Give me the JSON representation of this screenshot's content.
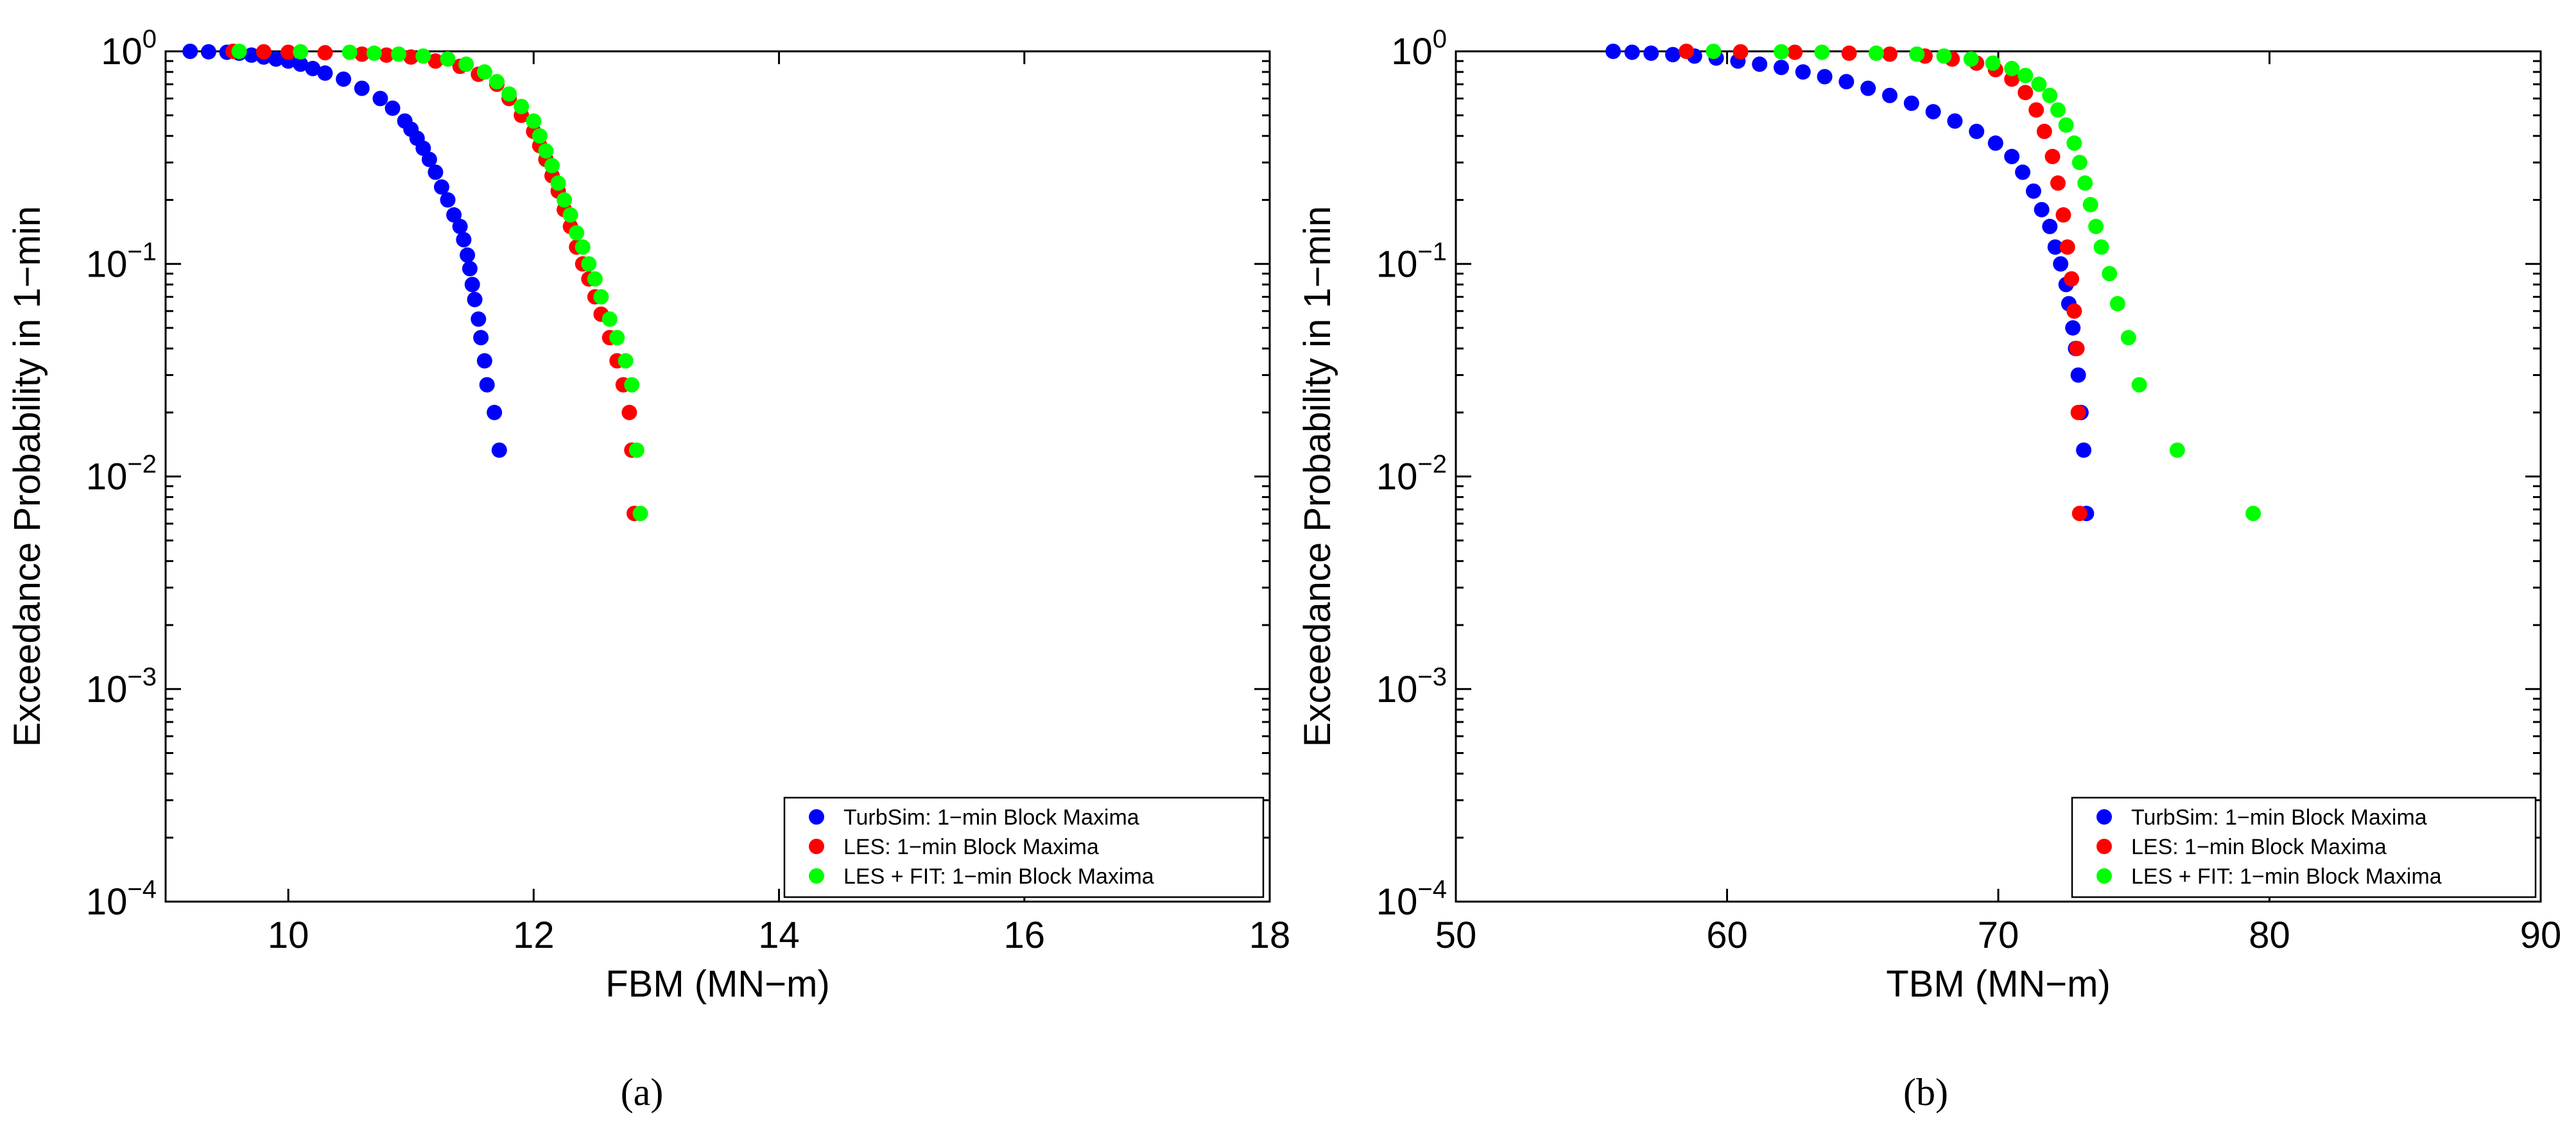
{
  "captions": [
    "(a)",
    "(b)"
  ],
  "chart_data": [
    {
      "type": "scatter",
      "title": "",
      "caption": "(a)",
      "xlabel": "FBM (MN−m)",
      "ylabel": "Exceedance Probability in 1−min",
      "xlim": [
        9,
        18
      ],
      "ylim": [
        0.0001,
        1
      ],
      "yscale": "log",
      "xticks": [
        10,
        12,
        14,
        16,
        18
      ],
      "xtick_labels": [
        "10",
        "12",
        "14",
        "16",
        "18"
      ],
      "yticks": [
        0.0001,
        0.001,
        0.01,
        0.1,
        1
      ],
      "ytick_bases": [
        "10",
        "10",
        "10",
        "10",
        "10"
      ],
      "ytick_exps": [
        "−4",
        "−3",
        "−2",
        "−1",
        "0"
      ],
      "grid": false,
      "legend_position": "bottom-right",
      "series": [
        {
          "name": "TurbSim: 1−min Block Maxima",
          "color": "#0000ff",
          "x": [
            9.2,
            9.35,
            9.5,
            9.6,
            9.7,
            9.8,
            9.9,
            10.0,
            10.1,
            10.2,
            10.3,
            10.45,
            10.6,
            10.75,
            10.85,
            10.95,
            11.0,
            11.05,
            11.1,
            11.15,
            11.2,
            11.25,
            11.3,
            11.35,
            11.4,
            11.43,
            11.46,
            11.48,
            11.5,
            11.52,
            11.55,
            11.57,
            11.6,
            11.62,
            11.68,
            11.72
          ],
          "y": [
            1.0,
            0.995,
            0.99,
            0.98,
            0.96,
            0.94,
            0.92,
            0.9,
            0.87,
            0.83,
            0.79,
            0.74,
            0.67,
            0.6,
            0.54,
            0.47,
            0.43,
            0.39,
            0.35,
            0.31,
            0.27,
            0.23,
            0.2,
            0.17,
            0.15,
            0.13,
            0.11,
            0.095,
            0.08,
            0.068,
            0.055,
            0.045,
            0.035,
            0.027,
            0.02,
            0.0133
          ]
        },
        {
          "name": "LES: 1−min Block Maxima",
          "color": "#ff0000",
          "x": [
            9.55,
            9.8,
            10.0,
            10.3,
            10.6,
            10.8,
            11.0,
            11.2,
            11.4,
            11.55,
            11.7,
            11.8,
            11.9,
            12.0,
            12.05,
            12.1,
            12.15,
            12.2,
            12.25,
            12.3,
            12.35,
            12.4,
            12.45,
            12.5,
            12.55,
            12.62,
            12.68,
            12.73,
            12.78,
            12.8,
            12.82
          ],
          "y": [
            1.0,
            0.995,
            0.99,
            0.985,
            0.97,
            0.96,
            0.94,
            0.9,
            0.85,
            0.78,
            0.7,
            0.6,
            0.5,
            0.42,
            0.36,
            0.31,
            0.26,
            0.22,
            0.18,
            0.15,
            0.12,
            0.1,
            0.085,
            0.07,
            0.058,
            0.045,
            0.035,
            0.027,
            0.02,
            0.0133,
            0.0067
          ]
        },
        {
          "name": "LES + FIT: 1−min Block Maxima",
          "color": "#00ff00",
          "x": [
            9.6,
            10.1,
            10.5,
            10.7,
            10.9,
            11.1,
            11.3,
            11.45,
            11.6,
            11.7,
            11.8,
            11.9,
            12.0,
            12.05,
            12.1,
            12.15,
            12.2,
            12.25,
            12.3,
            12.35,
            12.4,
            12.45,
            12.5,
            12.55,
            12.62,
            12.68,
            12.75,
            12.8,
            12.84,
            12.87
          ],
          "y": [
            1.0,
            0.995,
            0.99,
            0.98,
            0.97,
            0.95,
            0.92,
            0.87,
            0.8,
            0.72,
            0.63,
            0.55,
            0.47,
            0.4,
            0.34,
            0.29,
            0.24,
            0.2,
            0.17,
            0.14,
            0.12,
            0.1,
            0.085,
            0.07,
            0.055,
            0.045,
            0.035,
            0.027,
            0.0133,
            0.0067
          ]
        }
      ]
    },
    {
      "type": "scatter",
      "title": "",
      "caption": "(b)",
      "xlabel": "TBM (MN−m)",
      "ylabel": "Exceedance Probability in 1−min",
      "xlim": [
        50,
        90
      ],
      "ylim": [
        0.0001,
        1
      ],
      "yscale": "log",
      "xticks": [
        50,
        60,
        70,
        80,
        90
      ],
      "xtick_labels": [
        "50",
        "60",
        "70",
        "80",
        "90"
      ],
      "yticks": [
        0.0001,
        0.001,
        0.01,
        0.1,
        1
      ],
      "ytick_bases": [
        "10",
        "10",
        "10",
        "10",
        "10"
      ],
      "ytick_exps": [
        "−4",
        "−3",
        "−2",
        "−1",
        "0"
      ],
      "grid": false,
      "legend_position": "bottom-right",
      "series": [
        {
          "name": "TurbSim: 1−min Block Maxima",
          "color": "#0000ff",
          "x": [
            55.8,
            56.5,
            57.2,
            58.0,
            58.8,
            59.6,
            60.4,
            61.2,
            62.0,
            62.8,
            63.6,
            64.4,
            65.2,
            66.0,
            66.8,
            67.6,
            68.4,
            69.2,
            69.9,
            70.5,
            70.9,
            71.3,
            71.6,
            71.9,
            72.1,
            72.3,
            72.5,
            72.6,
            72.75,
            72.85,
            72.95,
            73.05,
            73.15,
            73.25
          ],
          "y": [
            1.0,
            0.99,
            0.98,
            0.965,
            0.95,
            0.93,
            0.9,
            0.87,
            0.84,
            0.8,
            0.76,
            0.72,
            0.67,
            0.62,
            0.57,
            0.52,
            0.47,
            0.42,
            0.37,
            0.32,
            0.27,
            0.22,
            0.18,
            0.15,
            0.12,
            0.1,
            0.08,
            0.065,
            0.05,
            0.04,
            0.03,
            0.02,
            0.0133,
            0.0067
          ]
        },
        {
          "name": "LES: 1−min Block Maxima",
          "color": "#ff0000",
          "x": [
            58.5,
            60.5,
            62.5,
            64.5,
            66.0,
            67.3,
            68.3,
            69.2,
            69.9,
            70.5,
            71.0,
            71.4,
            71.7,
            72.0,
            72.2,
            72.4,
            72.55,
            72.7,
            72.8,
            72.9,
            72.95,
            73.0
          ],
          "y": [
            1.0,
            0.995,
            0.99,
            0.98,
            0.97,
            0.95,
            0.92,
            0.88,
            0.82,
            0.74,
            0.64,
            0.53,
            0.42,
            0.32,
            0.24,
            0.17,
            0.12,
            0.085,
            0.06,
            0.04,
            0.02,
            0.0067
          ]
        },
        {
          "name": "LES + FIT: 1−min Block Maxima",
          "color": "#00ff00",
          "x": [
            59.5,
            62.0,
            63.5,
            65.5,
            67.0,
            68.0,
            69.0,
            69.8,
            70.5,
            71.0,
            71.5,
            71.9,
            72.2,
            72.5,
            72.8,
            73.0,
            73.2,
            73.4,
            73.6,
            73.8,
            74.1,
            74.4,
            74.8,
            75.2,
            76.6,
            79.4
          ],
          "y": [
            1.0,
            0.995,
            0.99,
            0.98,
            0.97,
            0.95,
            0.92,
            0.88,
            0.83,
            0.77,
            0.7,
            0.62,
            0.53,
            0.45,
            0.37,
            0.3,
            0.24,
            0.19,
            0.15,
            0.12,
            0.09,
            0.065,
            0.045,
            0.027,
            0.0133,
            0.0067
          ]
        }
      ]
    }
  ]
}
